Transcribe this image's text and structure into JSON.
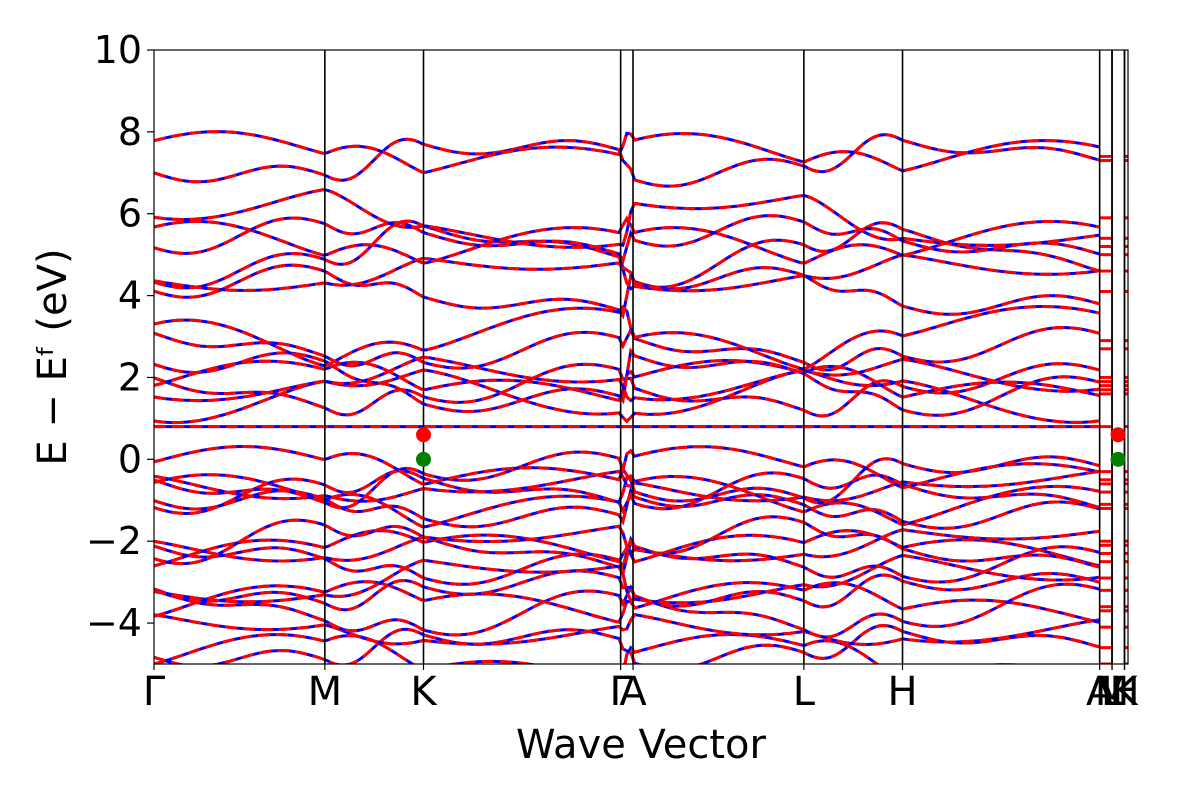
{
  "chart_data": {
    "type": "line",
    "title": "",
    "xlabel": "Wave Vector",
    "ylabel": "E − Eᶠ (eV)",
    "ylim": [
      -5,
      10
    ],
    "yticks": [
      -4,
      -2,
      0,
      2,
      4,
      6,
      8,
      10
    ],
    "ytick_labels": [
      "−4",
      "−2",
      "0",
      "2",
      "4",
      "6",
      "8",
      "10"
    ],
    "xlim": [
      0,
      1
    ],
    "kpath": [
      {
        "label": "Γ",
        "x": 0.0
      },
      {
        "label": "M",
        "x": 0.1754
      },
      {
        "label": "K",
        "x": 0.2767
      },
      {
        "label": "Γ",
        "x": 0.4791
      },
      {
        "label": "A",
        "x": 0.4918
      },
      {
        "label": "L",
        "x": 0.6672
      },
      {
        "label": "H",
        "x": 0.7685
      },
      {
        "label": "A",
        "x": 0.9709
      },
      {
        "label": "L",
        "x": 0.9836
      },
      {
        "label": "M",
        "x": 0.9836
      },
      {
        "label": "H",
        "x": 0.9964
      },
      {
        "label": "K",
        "x": 0.9964
      }
    ],
    "grid": false,
    "series": [
      {
        "label_hint": "blue solid",
        "color": "#0000ff",
        "style": "solid"
      },
      {
        "label_hint": "red dashed",
        "color": "#ff0000",
        "style": "dashed"
      }
    ],
    "bands_at_gamma": [
      -5.0,
      -4.6,
      -4.1,
      -3.7,
      -3.6,
      -3.2,
      -2.9,
      -2.5,
      -2.3,
      -2.1,
      -2.0,
      -1.2,
      -1.1,
      -0.8,
      -0.6,
      -0.5,
      -0.3,
      0.8,
      1.6,
      1.7,
      1.8,
      1.9,
      2.0,
      2.7,
      2.9,
      4.1,
      4.6,
      5.0,
      5.2,
      5.4,
      5.9,
      7.3,
      7.4
    ],
    "markers": [
      {
        "label_hint": "CBM",
        "x": 0.2767,
        "y": 0.6,
        "color": "#ff0000"
      },
      {
        "label_hint": "VBM",
        "x": 0.2767,
        "y": 0.0,
        "color": "#008000"
      },
      {
        "label_hint": "CBM",
        "x": 0.9898,
        "y": 0.6,
        "color": "#ff0000"
      },
      {
        "label_hint": "VBM",
        "x": 0.9898,
        "y": 0.0,
        "color": "#008000"
      }
    ]
  }
}
